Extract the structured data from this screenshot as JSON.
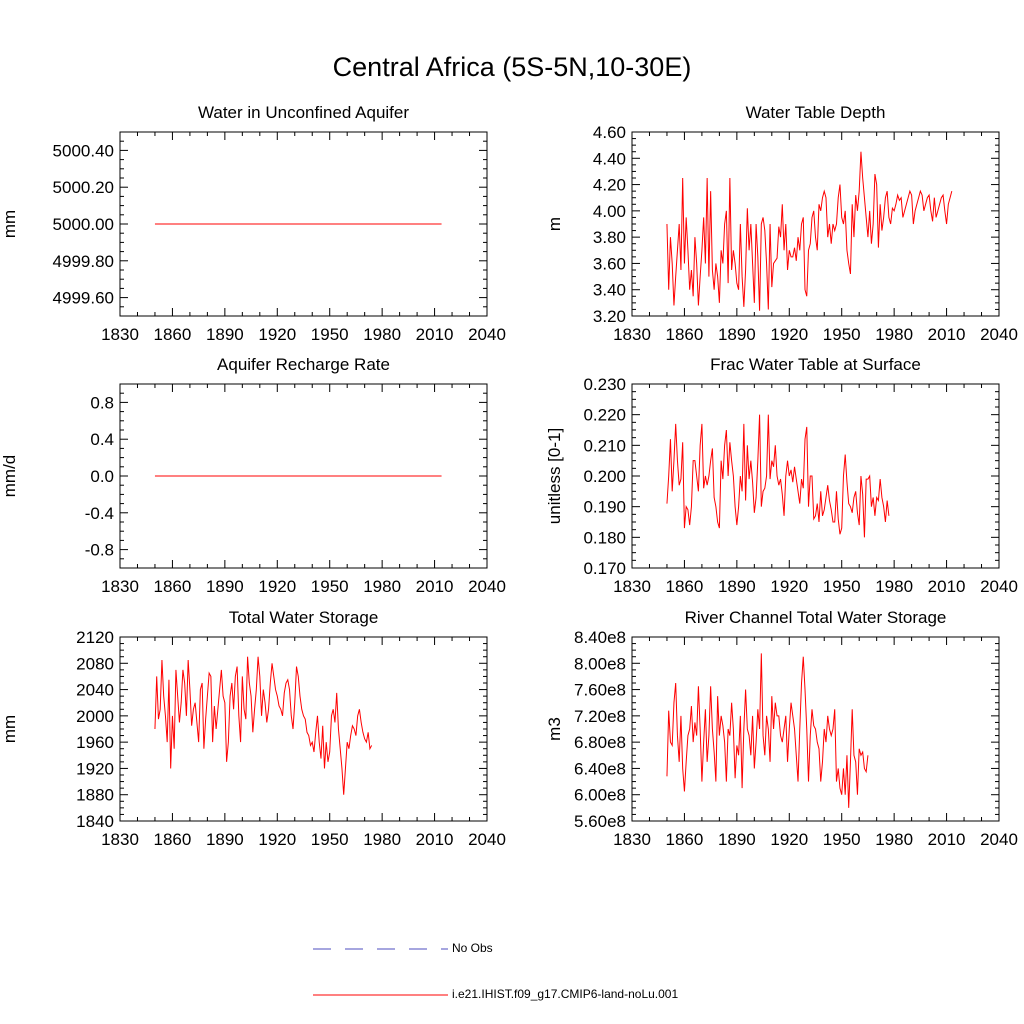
{
  "page_title": "Central Africa (5S-5N,10-30E)",
  "legend": [
    {
      "label": "No Obs",
      "color": "#4d4dbf",
      "style": "dashed"
    },
    {
      "label": "i.e21.IHIST.f09_g17.CMIP6-land-noLu.001",
      "color": "#ff0000",
      "style": "solid"
    }
  ],
  "chart_data": [
    {
      "type": "line",
      "title": "Water in Unconfined Aquifer",
      "ylabel": "mm",
      "xlim": [
        1830,
        2040
      ],
      "xticks": [
        1830,
        1860,
        1890,
        1920,
        1950,
        1980,
        2010,
        2040
      ],
      "ylim": [
        4999.5,
        5000.5
      ],
      "yticks": [
        4999.6,
        4999.8,
        5000.0,
        5000.2,
        5000.4
      ],
      "ytick_labels": [
        "4999.60",
        "4999.80",
        "5000.00",
        "5000.20",
        "5000.40"
      ],
      "x_start": 1850,
      "series": [
        {
          "name": "i.e21.IHIST.f09_g17.CMIP6-land-noLu.001",
          "color": "#ff0000",
          "constant": 5000.0,
          "x_end": 2014
        }
      ]
    },
    {
      "type": "line",
      "title": "Water Table Depth",
      "ylabel": "m",
      "xlim": [
        1830,
        2040
      ],
      "xticks": [
        1830,
        1860,
        1890,
        1920,
        1950,
        1980,
        2010,
        2040
      ],
      "ylim": [
        3.2,
        4.6
      ],
      "yticks": [
        3.2,
        3.4,
        3.6,
        3.8,
        4.0,
        4.2,
        4.4,
        4.6
      ],
      "ytick_labels": [
        "3.20",
        "3.40",
        "3.60",
        "3.80",
        "4.00",
        "4.20",
        "4.40",
        "4.60"
      ],
      "x_start": 1850,
      "series": [
        {
          "name": "i.e21.IHIST.f09_g17.CMIP6-land-noLu.001",
          "color": "#ff0000",
          "values": [
            3.9,
            3.4,
            3.8,
            3.6,
            3.28,
            3.5,
            3.7,
            3.9,
            3.55,
            4.25,
            3.6,
            3.95,
            3.7,
            3.4,
            3.55,
            3.35,
            3.8,
            3.6,
            3.28,
            3.5,
            3.7,
            3.95,
            3.6,
            4.25,
            3.5,
            4.15,
            3.55,
            3.4,
            3.6,
            3.5,
            3.3,
            3.7,
            3.6,
            3.9,
            4.0,
            3.45,
            4.25,
            3.55,
            3.7,
            3.6,
            3.45,
            3.4,
            3.9,
            3.5,
            3.27,
            3.55,
            4.02,
            3.7,
            3.9,
            3.6,
            3.3,
            3.9,
            3.65,
            3.24,
            3.9,
            3.95,
            3.85,
            3.6,
            3.25,
            3.9,
            3.42,
            3.6,
            3.62,
            3.64,
            3.88,
            3.8,
            4.05,
            3.7,
            3.9,
            3.55,
            3.7,
            3.65,
            3.65,
            3.72,
            3.62,
            3.8,
            3.7,
            3.9,
            3.95,
            3.4,
            3.35,
            3.7,
            3.75,
            3.95,
            4.0,
            3.8,
            3.7,
            4.05,
            4.0,
            4.1,
            4.15,
            4.1,
            3.8,
            3.9,
            3.75,
            3.9,
            3.85,
            3.9,
            4.1,
            4.2,
            3.95,
            3.9,
            4.0,
            3.7,
            3.6,
            3.52,
            4.05,
            3.8,
            4.12,
            4.0,
            4.15,
            4.45,
            4.25,
            4.1,
            3.95,
            3.8,
            4.0,
            3.75,
            3.9,
            4.28,
            4.2,
            3.72,
            4.05,
            3.85,
            3.95,
            4.1,
            4.15,
            3.95,
            3.9,
            4.02,
            4.0,
            4.05,
            4.12,
            4.08,
            4.1,
            3.95,
            4.0,
            4.05,
            4.1,
            4.15,
            4.12,
            3.9,
            4.0,
            4.05,
            4.1,
            4.15,
            4.12,
            4.0,
            4.05,
            4.1,
            4.12,
            4.0,
            3.92,
            4.1,
            3.95,
            4.0,
            4.05,
            4.1,
            4.12,
            4.0,
            3.9,
            4.05,
            4.1,
            4.15
          ]
        }
      ]
    },
    {
      "type": "line",
      "title": "Aquifer Recharge Rate",
      "ylabel": "mm/d",
      "xlim": [
        1830,
        2040
      ],
      "xticks": [
        1830,
        1860,
        1890,
        1920,
        1950,
        1980,
        2010,
        2040
      ],
      "ylim": [
        -1.0,
        1.0
      ],
      "yticks": [
        -0.8,
        -0.4,
        0.0,
        0.4,
        0.8
      ],
      "ytick_labels": [
        "-0.8",
        "-0.4",
        "0.0",
        "0.4",
        "0.8"
      ],
      "x_start": 1850,
      "series": [
        {
          "name": "i.e21.IHIST.f09_g17.CMIP6-land-noLu.001",
          "color": "#ff0000",
          "constant": 0.0,
          "x_end": 2014
        }
      ]
    },
    {
      "type": "line",
      "title": "Frac Water Table at Surface",
      "ylabel": "unitless [0-1]",
      "xlim": [
        1830,
        2040
      ],
      "xticks": [
        1830,
        1860,
        1890,
        1920,
        1950,
        1980,
        2010,
        2040
      ],
      "ylim": [
        0.17,
        0.23
      ],
      "yticks": [
        0.17,
        0.18,
        0.19,
        0.2,
        0.21,
        0.22,
        0.23
      ],
      "ytick_labels": [
        "0.170",
        "0.180",
        "0.190",
        "0.200",
        "0.210",
        "0.220",
        "0.230"
      ],
      "x_start": 1850,
      "series": [
        {
          "name": "i.e21.IHIST.f09_g17.CMIP6-land-noLu.001",
          "color": "#ff0000",
          "values": [
            0.191,
            0.2,
            0.212,
            0.195,
            0.205,
            0.217,
            0.205,
            0.197,
            0.199,
            0.211,
            0.183,
            0.19,
            0.189,
            0.184,
            0.19,
            0.205,
            0.205,
            0.2,
            0.195,
            0.21,
            0.217,
            0.196,
            0.2,
            0.197,
            0.2,
            0.205,
            0.209,
            0.193,
            0.19,
            0.185,
            0.183,
            0.205,
            0.199,
            0.21,
            0.215,
            0.2,
            0.211,
            0.205,
            0.2,
            0.19,
            0.184,
            0.19,
            0.2,
            0.195,
            0.217,
            0.192,
            0.21,
            0.199,
            0.205,
            0.198,
            0.188,
            0.193,
            0.205,
            0.22,
            0.19,
            0.195,
            0.196,
            0.2,
            0.22,
            0.199,
            0.205,
            0.203,
            0.21,
            0.2,
            0.197,
            0.199,
            0.194,
            0.187,
            0.2,
            0.205,
            0.2,
            0.202,
            0.198,
            0.203,
            0.199,
            0.195,
            0.191,
            0.199,
            0.196,
            0.212,
            0.216,
            0.19,
            0.2,
            0.2,
            0.186,
            0.187,
            0.191,
            0.185,
            0.195,
            0.187,
            0.189,
            0.193,
            0.197,
            0.192,
            0.189,
            0.185,
            0.185,
            0.195,
            0.186,
            0.181,
            0.183,
            0.2,
            0.207,
            0.198,
            0.191,
            0.19,
            0.188,
            0.193,
            0.195,
            0.188,
            0.184,
            0.2,
            0.194,
            0.18,
            0.199,
            0.199,
            0.2,
            0.19,
            0.193,
            0.187,
            0.193,
            0.192,
            0.199,
            0.193,
            0.19,
            0.185,
            0.192,
            0.187
          ]
        }
      ]
    },
    {
      "type": "line",
      "title": "Total Water Storage",
      "ylabel": "mm",
      "xlim": [
        1830,
        2040
      ],
      "xticks": [
        1830,
        1860,
        1890,
        1920,
        1950,
        1980,
        2010,
        2040
      ],
      "ylim": [
        1840,
        2120
      ],
      "yticks": [
        1840,
        1880,
        1920,
        1960,
        2000,
        2040,
        2080,
        2120
      ],
      "ytick_labels": [
        "1840",
        "1880",
        "1920",
        "1960",
        "2000",
        "2040",
        "2080",
        "2120"
      ],
      "x_start": 1850,
      "series": [
        {
          "name": "i.e21.IHIST.f09_g17.CMIP6-land-noLu.001",
          "color": "#ff0000",
          "values": [
            1980,
            2060,
            1995,
            2010,
            2085,
            2030,
            2000,
            1960,
            2055,
            1920,
            2000,
            1950,
            2070,
            2030,
            1990,
            2020,
            2070,
            2050,
            2000,
            2085,
            2040,
            1985,
            2010,
            2020,
            1990,
            1960,
            2040,
            2050,
            1950,
            1995,
            2030,
            2065,
            2060,
            1960,
            2015,
            1980,
            2010,
            2040,
            2070,
            2030,
            2020,
            1930,
            1960,
            2030,
            2050,
            2010,
            2060,
            2075,
            2000,
            1960,
            2060,
            2010,
            1995,
            2090,
            2050,
            2030,
            1975,
            2010,
            2040,
            2090,
            2060,
            2000,
            2040,
            2020,
            1990,
            2010,
            2050,
            2080,
            2060,
            2040,
            2030,
            2015,
            2010,
            2000,
            2035,
            2050,
            2055,
            2040,
            2000,
            1980,
            2020,
            2075,
            2060,
            2030,
            2010,
            2000,
            1995,
            1975,
            1970,
            1955,
            1960,
            1945,
            1975,
            2000,
            1960,
            1935,
            1985,
            1920,
            1960,
            1930,
            1945,
            2000,
            2010,
            1990,
            2035,
            1980,
            1950,
            1920,
            1880,
            1920,
            1960,
            1950,
            1970,
            1985,
            1980,
            1970,
            2000,
            2010,
            1990,
            1975,
            1965,
            1960,
            1975,
            1950,
            1955
          ]
        }
      ]
    },
    {
      "type": "line",
      "title": "River Channel Total Water Storage",
      "ylabel": "m3",
      "xlim": [
        1830,
        2040
      ],
      "xticks": [
        1830,
        1860,
        1890,
        1920,
        1950,
        1980,
        2010,
        2040
      ],
      "ylim": [
        560000000,
        840000000
      ],
      "yticks": [
        560000000,
        600000000,
        640000000,
        680000000,
        720000000,
        760000000,
        800000000,
        840000000
      ],
      "ytick_labels": [
        "5.60e8",
        "6.00e8",
        "6.40e8",
        "6.80e8",
        "7.20e8",
        "7.60e8",
        "8.00e8",
        "8.40e8"
      ],
      "x_start": 1850,
      "series": [
        {
          "name": "i.e21.IHIST.f09_g17.CMIP6-land-noLu.001",
          "color": "#ff0000",
          "values": [
            628000000,
            728000000,
            680000000,
            675000000,
            740000000,
            770000000,
            690000000,
            650000000,
            720000000,
            640000000,
            605000000,
            650000000,
            690000000,
            700000000,
            735000000,
            680000000,
            710000000,
            690000000,
            765000000,
            700000000,
            620000000,
            680000000,
            730000000,
            650000000,
            690000000,
            765000000,
            700000000,
            665000000,
            620000000,
            750000000,
            690000000,
            720000000,
            705000000,
            680000000,
            620000000,
            700000000,
            690000000,
            740000000,
            700000000,
            625000000,
            675000000,
            660000000,
            720000000,
            610000000,
            700000000,
            760000000,
            700000000,
            690000000,
            660000000,
            720000000,
            640000000,
            680000000,
            730000000,
            700000000,
            815000000,
            690000000,
            660000000,
            720000000,
            700000000,
            650000000,
            750000000,
            700000000,
            740000000,
            720000000,
            720000000,
            690000000,
            680000000,
            700000000,
            720000000,
            650000000,
            700000000,
            740000000,
            720000000,
            700000000,
            660000000,
            620000000,
            700000000,
            770000000,
            810000000,
            760000000,
            700000000,
            620000000,
            690000000,
            730000000,
            705000000,
            700000000,
            680000000,
            670000000,
            620000000,
            650000000,
            700000000,
            680000000,
            720000000,
            700000000,
            690000000,
            700000000,
            730000000,
            620000000,
            640000000,
            610000000,
            600000000,
            640000000,
            600000000,
            660000000,
            580000000,
            650000000,
            730000000,
            660000000,
            650000000,
            600000000,
            670000000,
            660000000,
            665000000,
            640000000,
            635000000,
            660000000
          ]
        }
      ]
    }
  ]
}
